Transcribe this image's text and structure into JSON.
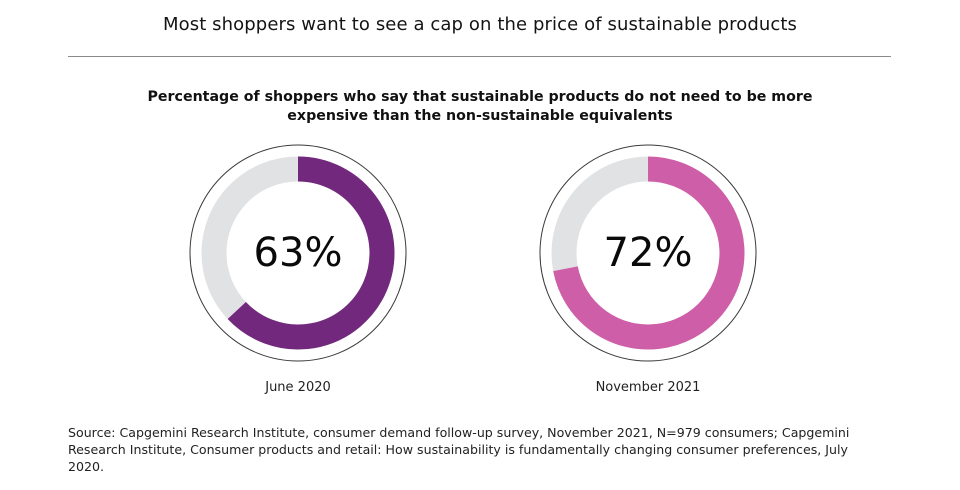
{
  "header": {
    "title": "Most shoppers want to see a cap on the price of sustainable products"
  },
  "chart_data": {
    "type": "pie",
    "variant": "donut",
    "title": "Percentage of shoppers who say that sustainable products do not need to be more expensive than the non-sustainable equivalents",
    "categories": [
      "June 2020",
      "November 2021"
    ],
    "values": [
      63,
      72
    ],
    "value_labels": [
      "63%",
      "72%"
    ],
    "unit": "%",
    "max": 100,
    "colors": [
      "#72287c",
      "#cf5ea8"
    ],
    "track_color": "#e1e2e4"
  },
  "footer": {
    "source": "Source: Capgemini Research Institute, consumer demand follow-up survey, November 2021, N=979 consumers; Capgemini Research Institute, Consumer products and retail: How sustainability is fundamentally changing consumer preferences, July 2020."
  }
}
